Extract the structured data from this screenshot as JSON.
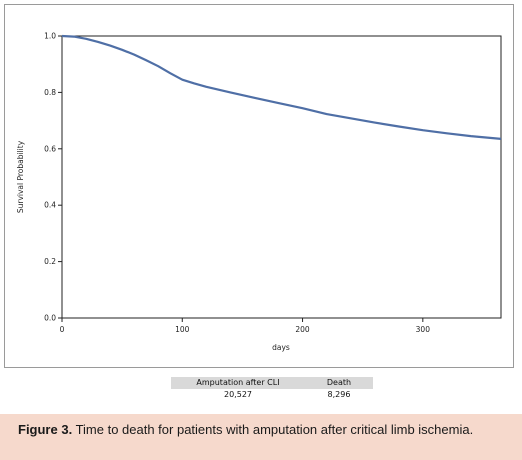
{
  "chart_data": {
    "type": "line",
    "title": "",
    "xlabel": "days",
    "ylabel": "Survival Probability",
    "xlim": [
      0,
      365
    ],
    "ylim": [
      0.0,
      1.0
    ],
    "x_ticks": [
      0,
      100,
      200,
      300
    ],
    "y_ticks": [
      0.0,
      0.2,
      0.4,
      0.6,
      0.8,
      1.0
    ],
    "x_tick_labels": [
      "0",
      "100",
      "200",
      "300"
    ],
    "y_tick_labels": [
      "0.0",
      "0.2",
      "0.4",
      "0.6",
      "0.8",
      "1.0"
    ],
    "grid": false,
    "legend": "none",
    "series": [
      {
        "color": "#4f6fa6",
        "x": [
          0,
          10,
          20,
          30,
          40,
          50,
          60,
          70,
          80,
          90,
          100,
          110,
          120,
          140,
          160,
          180,
          200,
          220,
          240,
          260,
          280,
          300,
          320,
          340,
          365
        ],
        "y": [
          1.0,
          0.998,
          0.99,
          0.979,
          0.966,
          0.951,
          0.934,
          0.914,
          0.893,
          0.868,
          0.845,
          0.832,
          0.82,
          0.8,
          0.781,
          0.762,
          0.744,
          0.723,
          0.708,
          0.693,
          0.679,
          0.666,
          0.655,
          0.645,
          0.635
        ]
      }
    ]
  },
  "summary_table": {
    "headers": [
      "Amputation after CLI",
      "Death"
    ],
    "values": [
      "20,527",
      "8,296"
    ]
  },
  "caption": {
    "label": "Figure 3.",
    "text": " Time to death for patients with amputation after critical limb ischemia."
  }
}
